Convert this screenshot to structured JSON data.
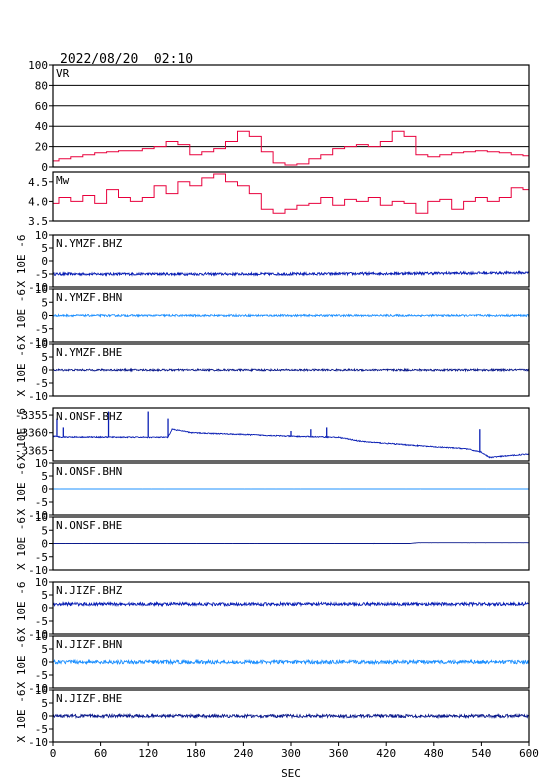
{
  "header": {
    "datetime": "2022/08/20  02:10"
  },
  "chart_data": {
    "type": "line",
    "xlabel": "SEC",
    "xlim": [
      0,
      600
    ],
    "xticks": [
      0,
      60,
      120,
      180,
      240,
      300,
      360,
      420,
      480,
      540,
      600
    ],
    "colors": {
      "vr_mw": "#e8003c",
      "bhz": "#0a1fb4",
      "bhn": "#1e90ff",
      "bhe": "#0b1a8c",
      "frame": "#000000"
    },
    "panels": [
      {
        "id": "vr",
        "label": "VR",
        "ylim": [
          0,
          100
        ],
        "yticks": [
          "100",
          "80",
          "60",
          "40",
          "20",
          "0"
        ],
        "ytick_values": [
          100,
          80,
          60,
          40,
          20,
          0
        ],
        "grid": true,
        "color_key": "vr_mw",
        "series": {
          "x": [
            0,
            15,
            30,
            45,
            60,
            75,
            90,
            105,
            120,
            135,
            150,
            165,
            180,
            195,
            210,
            225,
            240,
            255,
            270,
            285,
            300,
            315,
            330,
            345,
            360,
            375,
            390,
            405,
            420,
            435,
            450,
            465,
            480,
            495,
            510,
            525,
            540,
            555,
            570,
            585,
            600
          ],
          "y": [
            6,
            8,
            10,
            12,
            14,
            15,
            16,
            16,
            18,
            20,
            25,
            22,
            12,
            15,
            18,
            25,
            35,
            30,
            15,
            4,
            2,
            3,
            8,
            12,
            18,
            20,
            22,
            20,
            25,
            35,
            30,
            12,
            10,
            12,
            14,
            15,
            16,
            15,
            14,
            12,
            11
          ],
          "style": "step"
        }
      },
      {
        "id": "mw",
        "label": "Mw",
        "ylim": [
          3.5,
          4.75
        ],
        "yticks": [
          "4.5",
          "4.0",
          "3.5"
        ],
        "ytick_values": [
          4.5,
          4.0,
          3.5
        ],
        "grid": false,
        "color_key": "vr_mw",
        "series": {
          "x": [
            0,
            15,
            30,
            45,
            60,
            75,
            90,
            105,
            120,
            135,
            150,
            165,
            180,
            195,
            210,
            225,
            240,
            255,
            270,
            285,
            300,
            315,
            330,
            345,
            360,
            375,
            390,
            405,
            420,
            435,
            450,
            465,
            480,
            495,
            510,
            525,
            540,
            555,
            570,
            585,
            600
          ],
          "y": [
            3.95,
            4.1,
            4.0,
            4.15,
            3.95,
            4.3,
            4.1,
            4.0,
            4.1,
            4.4,
            4.2,
            4.5,
            4.4,
            4.6,
            4.7,
            4.5,
            4.4,
            4.2,
            3.8,
            3.7,
            3.8,
            3.9,
            3.95,
            4.1,
            3.9,
            4.05,
            4.0,
            4.1,
            3.9,
            4.0,
            3.95,
            3.7,
            4.0,
            4.05,
            3.8,
            4.0,
            4.1,
            4.0,
            4.1,
            4.35,
            4.3
          ],
          "style": "step"
        }
      },
      {
        "id": "ymzf_bhz",
        "label": "N.YMZF.BHZ",
        "ylabel": "X 10E -6",
        "ylim": [
          -10,
          10
        ],
        "yticks": [
          "10",
          "5",
          "0",
          "-5",
          "-10"
        ],
        "ytick_values": [
          10,
          5,
          0,
          -5,
          -10
        ],
        "color_key": "bhz",
        "trace": {
          "x": [
            0,
            300,
            600
          ],
          "y": [
            -5,
            -5,
            -4.5
          ],
          "noise": 0.5
        }
      },
      {
        "id": "ymzf_bhn",
        "label": "N.YMZF.BHN",
        "ylabel": "X 10E -6",
        "ylim": [
          -10,
          10
        ],
        "yticks": [
          "10",
          "5",
          "0",
          "-5",
          "-10"
        ],
        "ytick_values": [
          10,
          5,
          0,
          -5,
          -10
        ],
        "color_key": "bhn",
        "trace": {
          "x": [
            0,
            600
          ],
          "y": [
            0,
            0
          ],
          "noise": 0.35
        }
      },
      {
        "id": "ymzf_bhe",
        "label": "N.YMZF.BHE",
        "ylabel": "X 10E -6",
        "ylim": [
          -10,
          10
        ],
        "yticks": [
          "10",
          "5",
          "0",
          "-5",
          "-10"
        ],
        "ytick_values": [
          10,
          5,
          0,
          -5,
          -10
        ],
        "color_key": "bhe",
        "trace": {
          "x": [
            0,
            600
          ],
          "y": [
            0,
            0
          ],
          "noise": 0.35
        }
      },
      {
        "id": "onsf_bhz",
        "label": "N.ONSF.BHZ",
        "ylabel": "X 10E -6",
        "ylim": [
          -3368,
          -3353
        ],
        "yticks": [
          "-3355",
          "-3360",
          "-3365"
        ],
        "ytick_values": [
          -3355,
          -3360,
          -3365
        ],
        "color_key": "bhz",
        "trace": {
          "x": [
            0,
            10,
            145,
            150,
            175,
            240,
            300,
            360,
            390,
            420,
            480,
            520,
            540,
            550,
            600
          ],
          "y": [
            -3361,
            -3361.2,
            -3361.3,
            -3359,
            -3360,
            -3360.5,
            -3361,
            -3361.3,
            -3362.5,
            -3363,
            -3364,
            -3364.5,
            -3365.5,
            -3367,
            -3366
          ],
          "noise": 0.15
        },
        "spikes": [
          {
            "x": 5,
            "y": -3356
          },
          {
            "x": 13,
            "y": -3358.5
          },
          {
            "x": 70,
            "y": -3354
          },
          {
            "x": 120,
            "y": -3354
          },
          {
            "x": 145,
            "y": -3356
          },
          {
            "x": 300,
            "y": -3359.5
          },
          {
            "x": 325,
            "y": -3359
          },
          {
            "x": 345,
            "y": -3358.5
          },
          {
            "x": 538,
            "y": -3359
          }
        ]
      },
      {
        "id": "onsf_bhn",
        "label": "N.ONSF.BHN",
        "ylabel": "X 10E -6",
        "ylim": [
          -10,
          10
        ],
        "yticks": [
          "10",
          "5",
          "0",
          "-5",
          "-10"
        ],
        "ytick_values": [
          10,
          5,
          0,
          -5,
          -10
        ],
        "color_key": "bhn",
        "trace": {
          "x": [
            0,
            600
          ],
          "y": [
            0,
            0
          ],
          "noise": 0.02
        }
      },
      {
        "id": "onsf_bhe",
        "label": "N.ONSF.BHE",
        "ylabel": "X 10E -6",
        "ylim": [
          -10,
          10
        ],
        "yticks": [
          "10",
          "5",
          "0",
          "-5",
          "-10"
        ],
        "ytick_values": [
          10,
          5,
          0,
          -5,
          -10
        ],
        "color_key": "bhe",
        "trace": {
          "x": [
            0,
            450,
            460,
            600
          ],
          "y": [
            0,
            0,
            0.3,
            0.3
          ],
          "noise": 0.02
        }
      },
      {
        "id": "jizf_bhz",
        "label": "N.JIZF.BHZ",
        "ylabel": "X 10E -6",
        "ylim": [
          -10,
          10
        ],
        "yticks": [
          "10",
          "5",
          "0",
          "-5",
          "-10"
        ],
        "ytick_values": [
          10,
          5,
          0,
          -5,
          -10
        ],
        "color_key": "bhz",
        "trace": {
          "x": [
            0,
            600
          ],
          "y": [
            1.5,
            1.5
          ],
          "noise": 0.6
        }
      },
      {
        "id": "jizf_bhn",
        "label": "N.JIZF.BHN",
        "ylabel": "X 10E -6",
        "ylim": [
          -10,
          10
        ],
        "yticks": [
          "10",
          "5",
          "0",
          "-5",
          "-10"
        ],
        "ytick_values": [
          10,
          5,
          0,
          -5,
          -10
        ],
        "color_key": "bhn",
        "trace": {
          "x": [
            0,
            600
          ],
          "y": [
            0,
            0
          ],
          "noise": 0.7
        }
      },
      {
        "id": "jizf_bhe",
        "label": "N.JIZF.BHE",
        "ylabel": "X 10E -6",
        "ylim": [
          -10,
          10
        ],
        "yticks": [
          "10",
          "5",
          "0",
          "-5",
          "-10"
        ],
        "ytick_values": [
          10,
          5,
          0,
          -5,
          -10
        ],
        "color_key": "bhe",
        "trace": {
          "x": [
            0,
            600
          ],
          "y": [
            0,
            0
          ],
          "noise": 0.6
        }
      }
    ]
  }
}
